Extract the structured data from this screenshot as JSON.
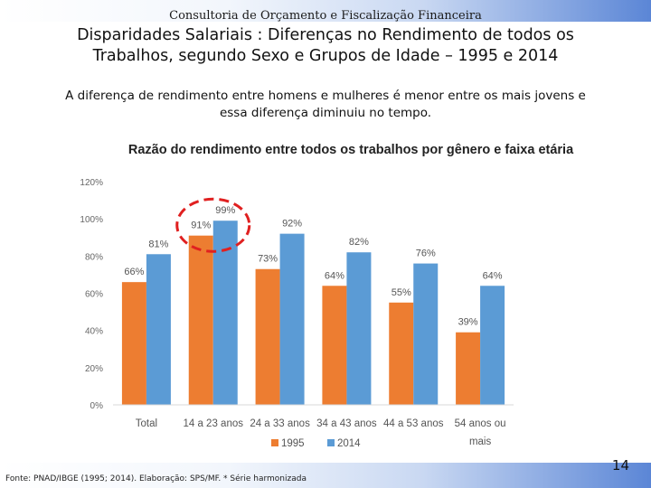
{
  "header": "Consultoria de Orçamento e Fiscalização Financeira",
  "title_line1": "Disparidades Salariais : Diferenças no Rendimento de todos os",
  "title_line2": "Trabalhos, segundo Sexo e Grupos de Idade – 1995 e 2014",
  "subtitle_line1": "A diferença de rendimento entre homens e mulheres é menor entre os mais jovens e",
  "subtitle_line2": "essa diferença diminuiu no tempo.",
  "footer": "Fonte: PNAD/IBGE (1995; 2014). Elaboração: SPS/MF. * Série harmonizada",
  "page_number": "14",
  "highlight_color": "#e02020",
  "chart_data": {
    "type": "bar",
    "title": "Razão do rendimento entre todos os trabalhos por gênero e faixa etária",
    "categories": [
      "Total",
      "14 a 23 anos",
      "24 a 33 anos",
      "34 a 43 anos",
      "44 a 53 anos",
      "54 anos ou mais"
    ],
    "category_lines": [
      [
        "Total"
      ],
      [
        "14 a 23 anos"
      ],
      [
        "24 a 33 anos"
      ],
      [
        "34 a 43 anos"
      ],
      [
        "44 a 53 anos"
      ],
      [
        "54 anos ou",
        "mais"
      ]
    ],
    "series": [
      {
        "name": "1995",
        "values": [
          66,
          91,
          73,
          64,
          55,
          39
        ],
        "labels": [
          "66%",
          "91%",
          "73%",
          "64%",
          "55%",
          "39%"
        ],
        "color": "#ed7d31"
      },
      {
        "name": "2014",
        "values": [
          81,
          99,
          92,
          82,
          76,
          64
        ],
        "labels": [
          "81%",
          "99%",
          "92%",
          "82%",
          "76%",
          "64%"
        ],
        "color": "#5b9bd5"
      }
    ],
    "yticks": [
      "0%",
      "20%",
      "40%",
      "60%",
      "80%",
      "100%",
      "120%"
    ],
    "ylim": [
      0,
      120
    ],
    "legend": "bottom",
    "highlight_category": "14 a 23 anos",
    "grid": false
  }
}
